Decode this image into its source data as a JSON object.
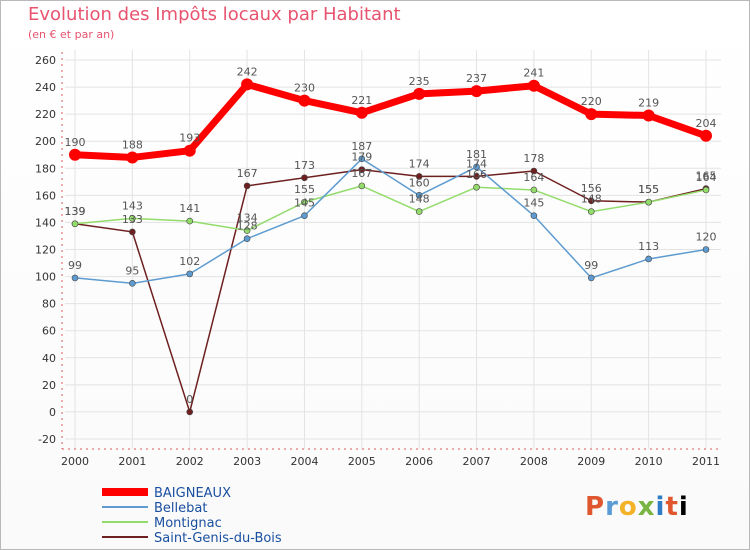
{
  "chart_data": {
    "type": "line",
    "title": "Evolution des Impôts locaux par Habitant",
    "subtitle": "(en € et par an)",
    "categories": [
      "2000",
      "2001",
      "2002",
      "2003",
      "2004",
      "2005",
      "2006",
      "2007",
      "2008",
      "2009",
      "2010",
      "2011"
    ],
    "ylim": [
      -20,
      260
    ],
    "yticks": [
      -20,
      0,
      20,
      40,
      60,
      80,
      100,
      120,
      140,
      160,
      180,
      200,
      220,
      240,
      260
    ],
    "series": [
      {
        "name": "BAIGNEAUX",
        "color": "#ff0000",
        "values": [
          190,
          188,
          193,
          242,
          230,
          221,
          235,
          237,
          241,
          220,
          219,
          204
        ]
      },
      {
        "name": "Bellebat",
        "color": "#5d9bd0",
        "values": [
          99,
          95,
          102,
          128,
          145,
          187,
          160,
          181,
          145,
          99,
          113,
          120
        ]
      },
      {
        "name": "Montignac",
        "color": "#93dc6b",
        "values": [
          139,
          143,
          141,
          134,
          155,
          167,
          148,
          166,
          164,
          148,
          155,
          164
        ]
      },
      {
        "name": "Saint-Genis-du-Bois",
        "color": "#6e2020",
        "values": [
          139,
          133,
          0,
          167,
          173,
          179,
          174,
          174,
          178,
          156,
          155,
          165
        ]
      }
    ],
    "data_labels": [
      [
        "190",
        "188",
        "193",
        "242",
        "230",
        "221",
        "235",
        "237",
        "241",
        "220",
        "219",
        "204"
      ],
      [
        "99",
        "95",
        "102",
        "128",
        "145",
        "187",
        "160",
        "181",
        "145",
        "99",
        "113",
        "120"
      ],
      [
        "139",
        "143",
        "141",
        "134",
        "155",
        "167",
        "148",
        "166",
        "164",
        "148",
        "155",
        "164"
      ],
      [
        "139",
        "133",
        "0",
        "167",
        "173",
        "179",
        "174",
        "174",
        "178",
        "156",
        "155",
        "165"
      ]
    ]
  },
  "logo": {
    "letters": [
      "P",
      "r",
      "o",
      "x",
      "i",
      "t",
      "i"
    ]
  }
}
